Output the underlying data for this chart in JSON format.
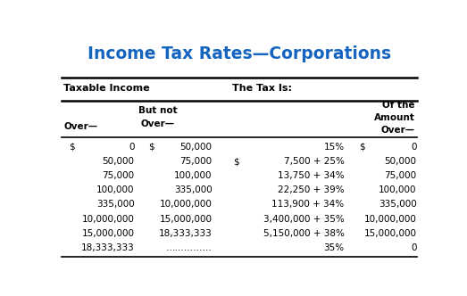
{
  "title": "Income Tax Rates—Corporations",
  "title_color": "#1565C0",
  "background_color": "#ffffff",
  "header1_left": "Taxable Income",
  "header1_right": "The Tax Is:",
  "text_color": "#000000",
  "rows": [
    [
      "$",
      "0",
      "$",
      "50,000",
      "",
      "15%",
      "$",
      "0"
    ],
    [
      "",
      "50,000",
      "",
      "75,000",
      "$",
      "7,500 + 25%",
      "",
      "50,000"
    ],
    [
      "",
      "75,000",
      "",
      "100,000",
      "",
      "13,750 + 34%",
      "",
      "75,000"
    ],
    [
      "",
      "100,000",
      "",
      "335,000",
      "",
      "22,250 + 39%",
      "",
      "100,000"
    ],
    [
      "",
      "335,000",
      "",
      "10,000,000",
      "",
      "113,900 + 34%",
      "",
      "335,000"
    ],
    [
      "",
      "10,000,000",
      "",
      "15,000,000",
      "",
      "3,400,000 + 35%",
      "",
      "10,000,000"
    ],
    [
      "",
      "15,000,000",
      "",
      "18,333,333",
      "",
      "5,150,000 + 38%",
      "",
      "15,000,000"
    ],
    [
      "",
      "18,333,333",
      "",
      "……………",
      "",
      "35%",
      "",
      "0"
    ]
  ]
}
